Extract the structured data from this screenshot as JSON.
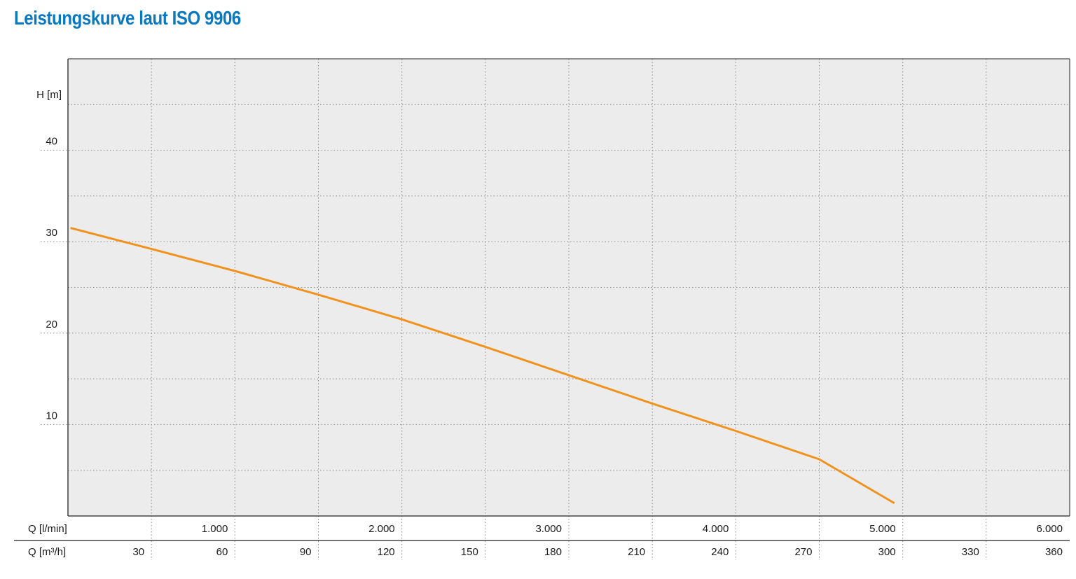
{
  "colors": {
    "title": "#0a78be",
    "curve": "#f0931e",
    "plot_bg": "#ececec",
    "grid": "#8a8a8a",
    "frame": "#222222"
  },
  "chart_data": {
    "type": "line",
    "title": "Leistungskurve laut ISO 9906",
    "ylabel": "H [m]",
    "xlabel_primary": "Q [l/min]",
    "xlabel_secondary": "Q [m³/h]",
    "xlim": [
      0,
      6000
    ],
    "ylim": [
      0,
      50
    ],
    "y_ticks": [
      {
        "value": 10,
        "label": "10"
      },
      {
        "value": 20,
        "label": "20"
      },
      {
        "value": 30,
        "label": "30"
      },
      {
        "value": 40,
        "label": "40"
      }
    ],
    "y_minor_gridlines": [
      5,
      15,
      25,
      35,
      45
    ],
    "x_ticks_primary": [
      {
        "value": 1000,
        "label": "1.000"
      },
      {
        "value": 2000,
        "label": "2.000"
      },
      {
        "value": 3000,
        "label": "3.000"
      },
      {
        "value": 4000,
        "label": "4.000"
      },
      {
        "value": 5000,
        "label": "5.000"
      },
      {
        "value": 6000,
        "label": "6.000"
      }
    ],
    "x_ticks_secondary": [
      {
        "value": 30,
        "label": "30"
      },
      {
        "value": 60,
        "label": "60"
      },
      {
        "value": 90,
        "label": "90"
      },
      {
        "value": 120,
        "label": "120"
      },
      {
        "value": 150,
        "label": "150"
      },
      {
        "value": 180,
        "label": "180"
      },
      {
        "value": 210,
        "label": "210"
      },
      {
        "value": 240,
        "label": "240"
      },
      {
        "value": 270,
        "label": "270"
      },
      {
        "value": 300,
        "label": "300"
      },
      {
        "value": 330,
        "label": "330"
      },
      {
        "value": 360,
        "label": "360"
      }
    ],
    "grid": true,
    "series": [
      {
        "x": [
          15,
          500,
          1000,
          1500,
          2000,
          2500,
          3000,
          3500,
          4000,
          4500,
          4950
        ],
        "y": [
          31.5,
          29.2,
          26.8,
          24.2,
          21.5,
          18.5,
          15.4,
          12.3,
          9.3,
          6.2,
          1.4
        ]
      }
    ]
  }
}
